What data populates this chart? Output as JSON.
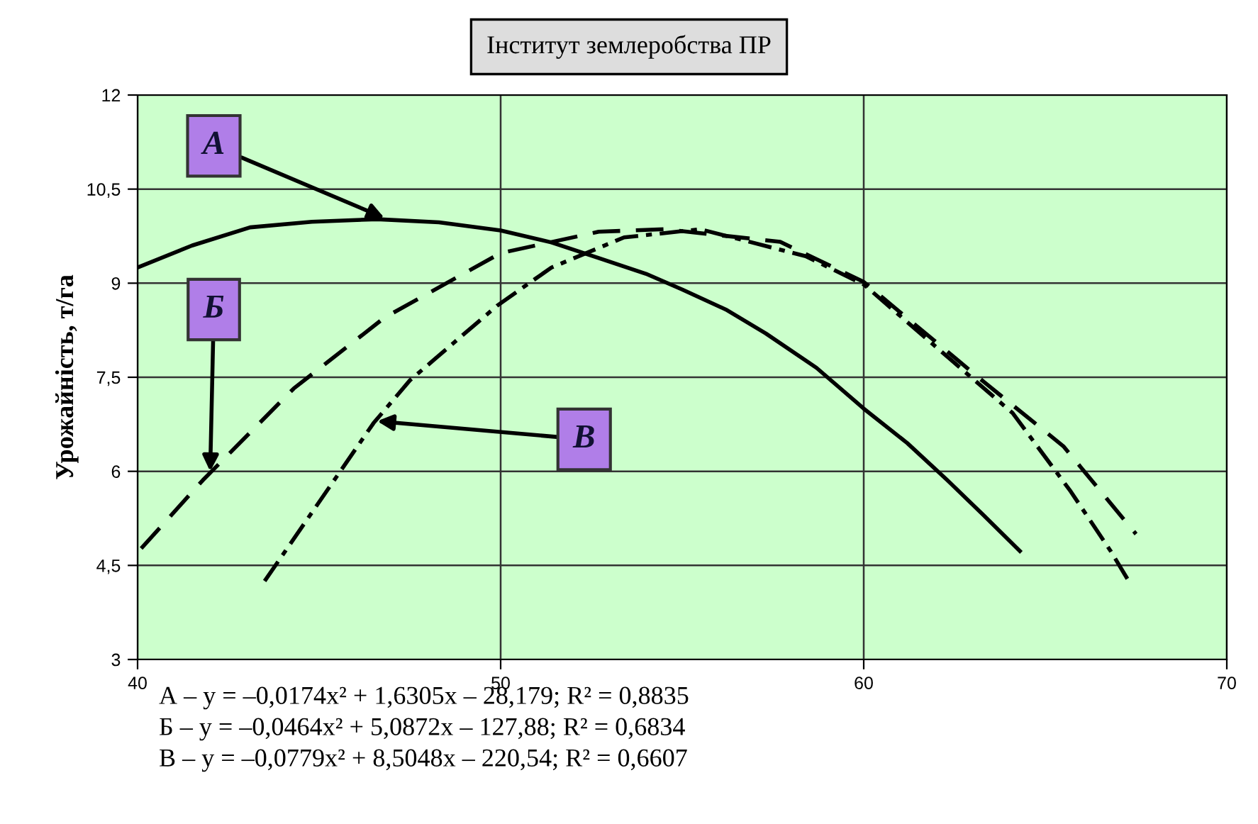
{
  "chart_data": {
    "type": "line",
    "title": "Інститут землеробства ПР",
    "ylabel": "Урожайність, т/га",
    "xlim": [
      40,
      70
    ],
    "xticks": [
      40,
      50,
      60,
      70
    ],
    "ylim": [
      3,
      12
    ],
    "yticks": [
      3,
      {
        "value": 4.5,
        "label": "4,5"
      },
      6,
      {
        "value": 7.5,
        "label": "7,5"
      },
      9,
      {
        "value": 10.5,
        "label": "10,5"
      },
      12
    ],
    "grid": true,
    "legend": false,
    "marker": "none",
    "series": [
      {
        "color": "#000000",
        "line_style": "solid",
        "x": [
          40,
          41.5,
          43.1,
          44.8,
          46.6,
          48.3,
          50,
          51.4,
          52.7,
          54,
          55,
          56.2,
          57.3,
          58.7,
          60,
          61.2,
          62.3,
          63.3,
          64.3
        ],
        "values": [
          9.25,
          9.6,
          9.89,
          9.98,
          10.02,
          9.97,
          9.84,
          9.65,
          9.4,
          9.15,
          8.9,
          8.58,
          8.2,
          7.65,
          7.0,
          6.45,
          5.86,
          5.3,
          4.73
        ]
      },
      {
        "color": "#000000",
        "line_style": "dashed",
        "x": [
          40.1,
          41.8,
          44.3,
          46.8,
          50,
          52.7,
          54.5,
          57.7,
          60,
          63.3,
          65.5,
          67.5
        ],
        "values": [
          4.77,
          5.86,
          7.32,
          8.45,
          9.48,
          9.82,
          9.86,
          9.66,
          9.02,
          7.43,
          6.4,
          5.0
        ]
      },
      {
        "color": "#000000",
        "line_style": "dashdot",
        "x": [
          43.5,
          46.5,
          47.5,
          49.9,
          51.4,
          53.4,
          55.5,
          58.4,
          60,
          64.1,
          65.7,
          66.8,
          67.3
        ],
        "values": [
          4.25,
          6.77,
          7.45,
          8.64,
          9.25,
          9.73,
          9.86,
          9.43,
          8.98,
          6.93,
          5.68,
          4.73,
          4.25
        ]
      }
    ],
    "annotations": [
      {
        "text": "А",
        "x": 46.8,
        "y": 10.04
      },
      {
        "text": "Б",
        "x": 42,
        "y": 6.0
      },
      {
        "text": "В",
        "x": 46.6,
        "y": 6.8
      },
      "А – y = –0,0174x² + 1,6305x – 28,179; R² = 0,8835",
      "Б – y = –0,0464x² + 5,0872x – 127,88; R² = 0,6834",
      "В – y = –0,0779x² + 8,5048x – 220,54; R² = 0,6607"
    ]
  }
}
